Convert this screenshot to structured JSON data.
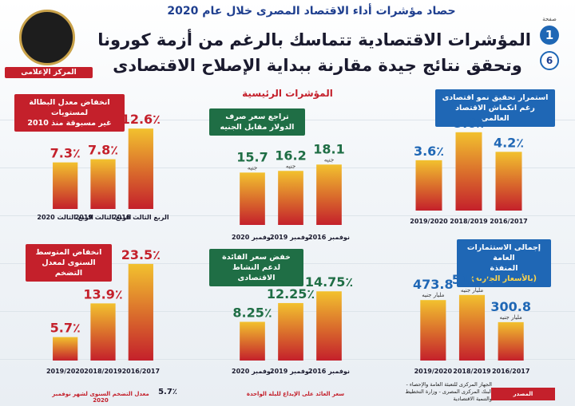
{
  "header": {
    "top_title": "حصاد مؤشرات أداء الاقتصاد المصرى خلال عام 2020",
    "headline_line1": "المؤشرات الاقتصادية تتماسك بالرغم من أزمة كورونا",
    "headline_line2": "وتحقق نتائج جيدة مقارنة ببداية الإصلاح الاقتصادى",
    "page_word": "صفحة",
    "page_number": "1",
    "page_total": "6",
    "section_title": "المؤشرات الرئيسية",
    "logo_caption": "المركز الإعلامى"
  },
  "panels": {
    "growth_label_1": "استمرار تحقيق نمو اقتصادى",
    "growth_label_2": "رغم انكماش الاقتصاد العالمى",
    "dollar_label_1": "تراجع سعر صرف",
    "dollar_label_2": "الدولار مقابل الجنيه",
    "unemployment_label_1": "انخفاض معدل البطالة لمستويات",
    "unemployment_label_2": "غير مسبوقة منذ 2010",
    "investment_label_1": "إجمالى الاستثمارات العامة",
    "investment_label_2": "المنفذة",
    "investment_sub": "(بالأسعار الجارية)",
    "interest_label_1": "خفض سعر الفائدة",
    "interest_label_2": "لدعم النشاط الاقتصادى",
    "inflation_label_1": "انخفاض المتوسط",
    "inflation_label_2": "السنوى لمعدل التضخم",
    "interest_note": "سعر العائد على الإيداع لليلة الواحدة",
    "inflation_note": "معدل التضخم السنوى لشهر نوفمبر 2020",
    "inflation_note_value": "5.7٪",
    "source_label": "المصدر",
    "source_text": "الجهاز المركزى للتعبئة العامة والإحصاء - البنك المركزى المصرى - وزارة التخطيط والتنمية الاقتصادية"
  },
  "colors": {
    "red": "#c4202b",
    "green": "#1f6e45",
    "blue": "#1f67b5",
    "bar_top": "#f2c12e",
    "bar_bottom": "#c4202b"
  },
  "chart_data": [
    {
      "type": "bar",
      "id": "growth",
      "title": "استمرار تحقيق نمو اقتصادى رغم انكماش الاقتصاد العالمى",
      "categories": [
        "2019/2020",
        "2018/2019",
        "2016/2017"
      ],
      "values": [
        3.6,
        5.6,
        4.2
      ],
      "value_labels": [
        "3.6٪",
        "5.6٪",
        "4.2٪"
      ],
      "value_color": "#1f67b5"
    },
    {
      "type": "bar",
      "id": "dollar",
      "title": "تراجع سعر صرف الدولار مقابل الجنيه",
      "categories": [
        "نوفمبر 2020",
        "نوفمبر 2019",
        "نوفمبر 2016"
      ],
      "values": [
        15.7,
        16.2,
        18.1
      ],
      "value_labels": [
        "15.7",
        "16.2",
        "18.1"
      ],
      "unit_labels": [
        "جنيه",
        "جنيه",
        "جنيه"
      ],
      "value_color": "#1f6e45"
    },
    {
      "type": "bar",
      "id": "unemployment",
      "title": "انخفاض معدل البطالة لمستويات غير مسبوقة منذ 2010",
      "categories": [
        "الربع الثالث 2020",
        "الربع الثالث 2019",
        "الربع الثالث 2016"
      ],
      "values": [
        7.3,
        7.8,
        12.6
      ],
      "value_labels": [
        "7.3٪",
        "7.8٪",
        "12.6٪"
      ],
      "value_color": "#c4202b"
    },
    {
      "type": "bar",
      "id": "investment",
      "title": "إجمالى الاستثمارات العامة المنفذة (بالأسعار الجارية)",
      "categories": [
        "2019/2020",
        "2018/2019",
        "2016/2017"
      ],
      "values": [
        473.8,
        513.7,
        300.8
      ],
      "value_labels": [
        "473.8",
        "513.7",
        "300.8"
      ],
      "unit_labels": [
        "مليار جنيه",
        "مليار جنيه",
        "مليار جنيه"
      ],
      "value_color": "#1f67b5"
    },
    {
      "type": "bar",
      "id": "interest",
      "title": "خفض سعر الفائدة لدعم النشاط الاقتصادى",
      "categories": [
        "نوفمبر 2020",
        "نوفمبر 2019",
        "نوفمبر 2016"
      ],
      "values": [
        8.25,
        12.25,
        14.75
      ],
      "value_labels": [
        "8.25٪",
        "12.25٪",
        "14.75٪"
      ],
      "value_color": "#1f6e45"
    },
    {
      "type": "bar",
      "id": "inflation",
      "title": "انخفاض المتوسط السنوى لمعدل التضخم",
      "categories": [
        "2019/2020",
        "2018/2019",
        "2016/2017"
      ],
      "values": [
        5.7,
        13.9,
        23.5
      ],
      "value_labels": [
        "5.7٪",
        "13.9٪",
        "23.5٪"
      ],
      "value_color": "#c4202b"
    }
  ]
}
